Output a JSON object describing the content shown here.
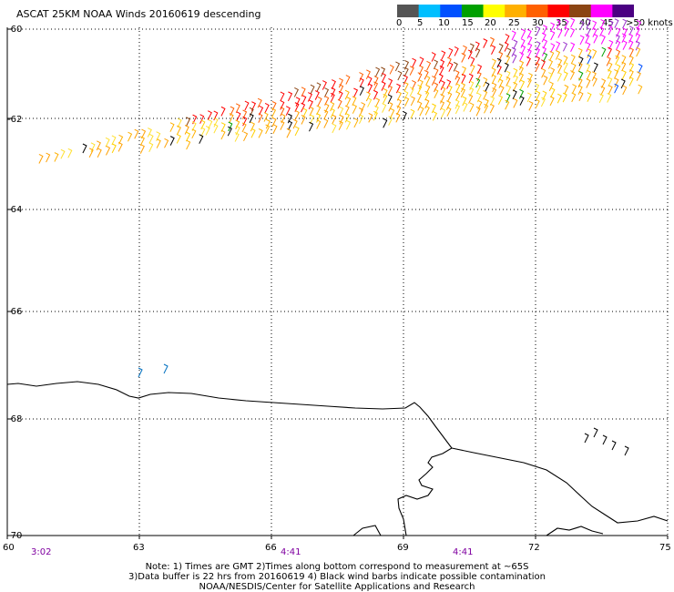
{
  "title": "ASCAT 25KM NOAA Winds 20160619 descending",
  "legend": {
    "labels": [
      "0",
      "5",
      "10",
      "15",
      "20",
      "25",
      "30",
      "35",
      "40",
      "45",
      ">50 knots"
    ],
    "colors": [
      "#555555",
      "#00bfff",
      "#0050ff",
      "#00a000",
      "#ffff00",
      "#ffb000",
      "#ff6000",
      "#ff0000",
      "#8b4513",
      "#ff00ff",
      "#4b0082"
    ]
  },
  "axes": {
    "lat_labels": [
      "-60",
      "-62",
      "-64",
      "-66",
      "-68",
      "-70"
    ],
    "lon_labels": [
      "60",
      "63",
      "66",
      "69",
      "72",
      "75"
    ],
    "lat_range": [
      -70,
      -60
    ],
    "lon_range": [
      60,
      75
    ],
    "grid": "dotted"
  },
  "times": [
    {
      "label": "3:02",
      "lon": 60.7
    },
    {
      "label": "4:41",
      "lon": 66.4
    },
    {
      "label": "4:41",
      "lon": 70.4
    }
  ],
  "notes": [
    "Note: 1) Times are GMT 2)Times along bottom correspond to measurement at ~65S",
    "3)Data buffer is 22 hrs from 20160619 4) Black wind barbs indicate possible contamination",
    "NOAA/NESDIS/Center for Satellite Applications and Research"
  ],
  "colors": {
    "time_label": "#7f00a0",
    "grid": "#000000",
    "coast": "#000000"
  }
}
